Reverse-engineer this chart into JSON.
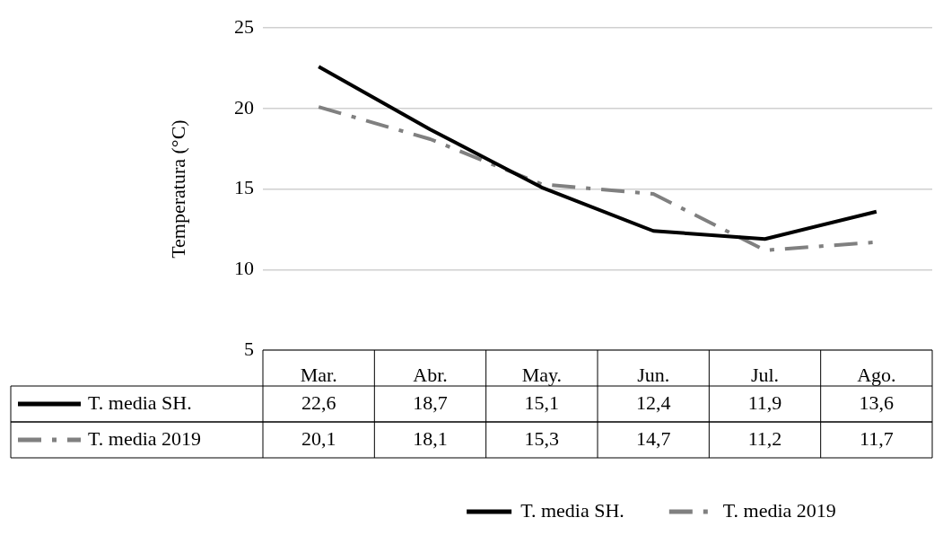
{
  "chart_data": {
    "type": "line",
    "ylabel": "Temperatura (°C)",
    "categories": [
      "Mar.",
      "Abr.",
      "May.",
      "Jun.",
      "Jul.",
      "Ago."
    ],
    "series": [
      {
        "name": "T. media SH.",
        "color": "#000000",
        "line_style": "solid",
        "values": [
          22.6,
          18.7,
          15.1,
          12.4,
          11.9,
          13.6
        ],
        "value_labels": [
          "22,6",
          "18,7",
          "15,1",
          "12,4",
          "11,9",
          "13,6"
        ]
      },
      {
        "name": "T. media 2019",
        "color": "#808080",
        "line_style": "dashed",
        "values": [
          20.1,
          18.1,
          15.3,
          14.7,
          11.2,
          11.7
        ],
        "value_labels": [
          "20,1",
          "18,1",
          "15,3",
          "14,7",
          "11,2",
          "11,7"
        ]
      }
    ],
    "ylim": [
      5,
      25
    ],
    "yticks": [
      5,
      10,
      15,
      20,
      25
    ],
    "grid": "y",
    "legend": "bottom",
    "marker": "none"
  }
}
